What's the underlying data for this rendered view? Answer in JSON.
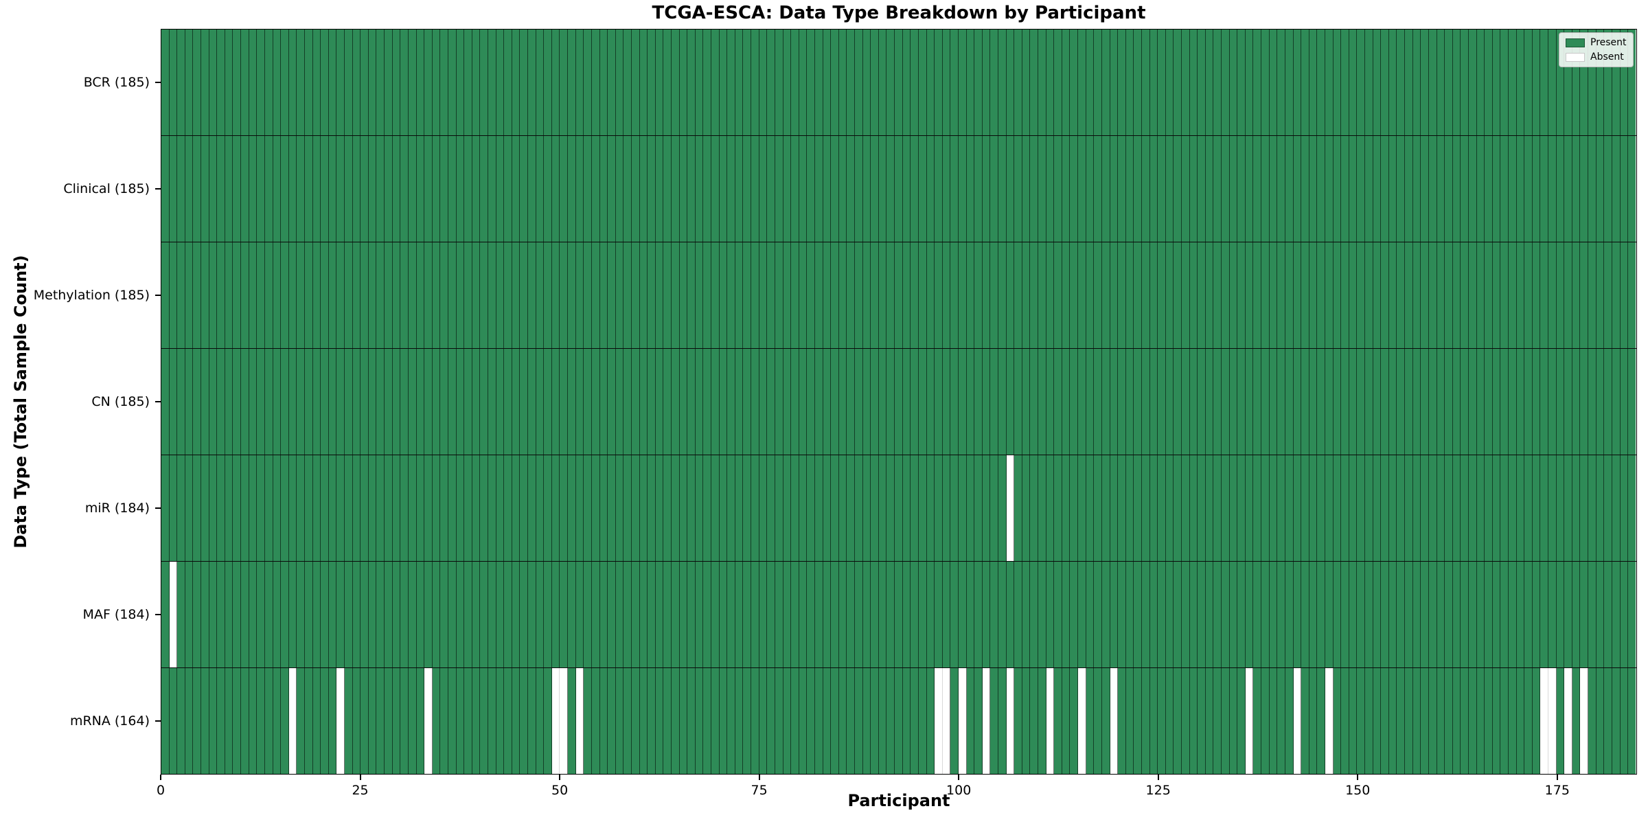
{
  "title": "TCGA-ESCA: Data Type Breakdown by Participant",
  "xlabel": "Participant",
  "ylabel": "Data Type (Total Sample Count)",
  "colors": {
    "present": "#2e8b57",
    "absent": "#ffffff",
    "cell_edge": "rgba(0,0,0,0.55)",
    "cell_edge_faint": "rgba(0,0,0,0.15)",
    "row_separator": "#0a0a0a",
    "axis": "#000000"
  },
  "chart_data": {
    "type": "heatmap",
    "title": "TCGA-ESCA: Data Type Breakdown by Participant",
    "xlabel": "Participant",
    "ylabel": "Data Type (Total Sample Count)",
    "n_participants": 185,
    "x_ticks": [
      0,
      25,
      50,
      75,
      100,
      125,
      150,
      175
    ],
    "legend_position": "upper right",
    "grid": "cell-edges",
    "rows": [
      {
        "name": "BCR",
        "label": "BCR (185)",
        "count": 185,
        "absent": []
      },
      {
        "name": "Clinical",
        "label": "Clinical (185)",
        "count": 185,
        "absent": []
      },
      {
        "name": "Methylation",
        "label": "Methylation (185)",
        "count": 185,
        "absent": []
      },
      {
        "name": "CN",
        "label": "CN (185)",
        "count": 185,
        "absent": []
      },
      {
        "name": "miR",
        "label": "miR (184)",
        "count": 184,
        "absent": [
          106
        ]
      },
      {
        "name": "MAF",
        "label": "MAF (184)",
        "count": 184,
        "absent": [
          1
        ]
      },
      {
        "name": "mRNA",
        "label": "mRNA (164)",
        "count": 164,
        "absent": [
          16,
          22,
          33,
          49,
          50,
          52,
          97,
          98,
          100,
          103,
          106,
          111,
          115,
          119,
          136,
          142,
          146,
          173,
          174,
          176,
          178
        ]
      }
    ],
    "legend_entries": [
      {
        "label": "Present",
        "color": "#2e8b57",
        "edge": "#1c5736"
      },
      {
        "label": "Absent",
        "color": "#ffffff",
        "edge": "#c8c8c8"
      }
    ]
  }
}
